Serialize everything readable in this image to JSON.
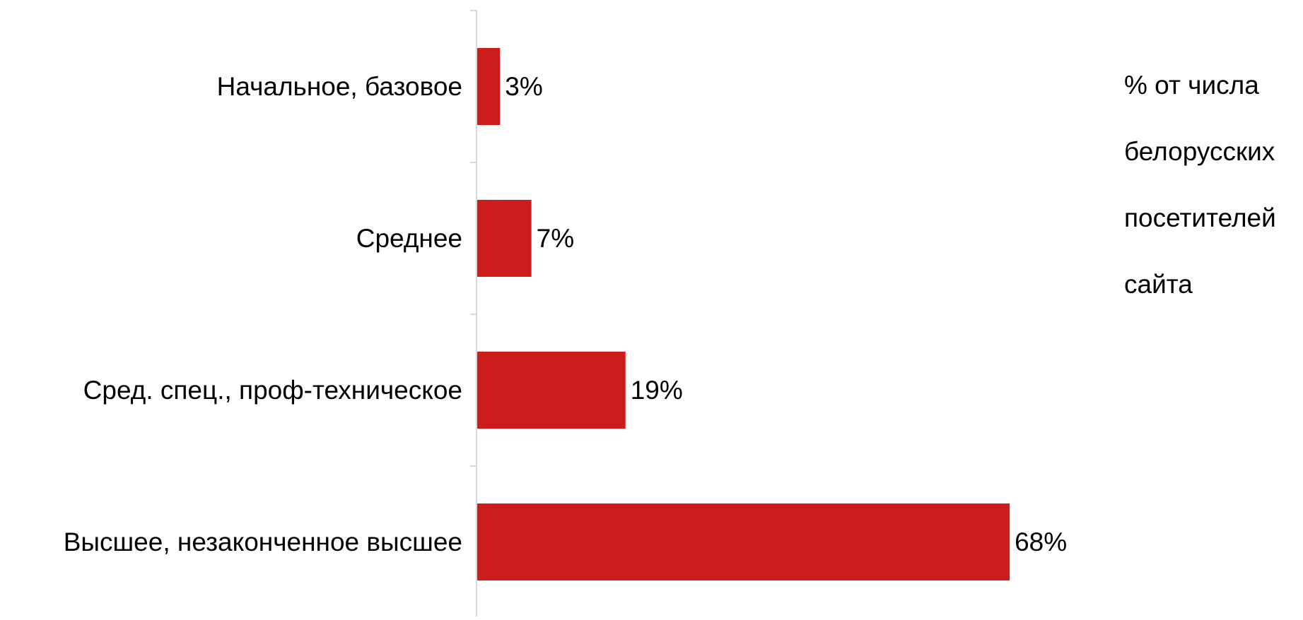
{
  "chart_data": {
    "type": "bar",
    "orientation": "horizontal",
    "categories": [
      "Начальное, базовое",
      "Среднее",
      "Сред. спец., проф-техническое",
      "Высшее, незаконченное высшее"
    ],
    "values": [
      3,
      7,
      19,
      68
    ],
    "value_labels": [
      "3%",
      "7%",
      "19%",
      "68%"
    ],
    "note": "% от числа белорусских посетителей сайта",
    "note_lines": [
      "% от числа",
      "белорусских",
      "посетителей",
      "сайта"
    ],
    "xlim": [
      0,
      100
    ],
    "grid": false,
    "bar_color": "#cc1c1c",
    "axis_color": "#d9d9d9"
  }
}
